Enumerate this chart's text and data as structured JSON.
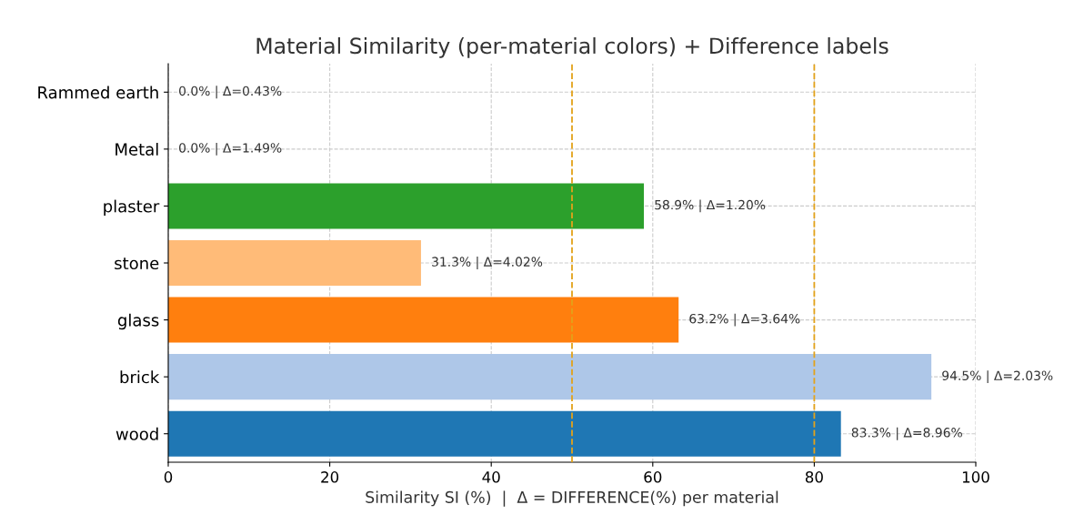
{
  "chart_data": {
    "type": "bar",
    "orientation": "horizontal",
    "title": "Material Similarity (per-material colors) + Difference labels",
    "xlabel": "Similarity SI (%)  |  Δ = DIFFERENCE(%) per material",
    "categories": [
      "Rammed earth",
      "Metal",
      "plaster",
      "stone",
      "glass",
      "brick",
      "wood"
    ],
    "values": [
      0.0,
      0.0,
      58.9,
      31.3,
      63.2,
      94.5,
      83.3
    ],
    "colors": [
      "#d62728",
      "#98df8a",
      "#2ca02c",
      "#ffbb78",
      "#ff7f0e",
      "#aec7e8",
      "#1f77b4"
    ],
    "value_labels": [
      "0.0% | Δ=0.43%",
      "0.0% | Δ=1.49%",
      "58.9% | Δ=1.20%",
      "31.3% | Δ=4.02%",
      "63.2% | Δ=3.64%",
      "94.5% | Δ=2.03%",
      "83.3% | Δ=8.96%"
    ],
    "xlim": [
      0,
      100
    ],
    "xticks": [
      0,
      20,
      40,
      60,
      80,
      100
    ],
    "ref_lines": [
      {
        "axis": "x",
        "value": 50,
        "color": "#e3a21a",
        "line_style": "dashed"
      },
      {
        "axis": "x",
        "value": 80,
        "color": "#e3a21a",
        "line_style": "dashed"
      }
    ],
    "grid": true
  }
}
